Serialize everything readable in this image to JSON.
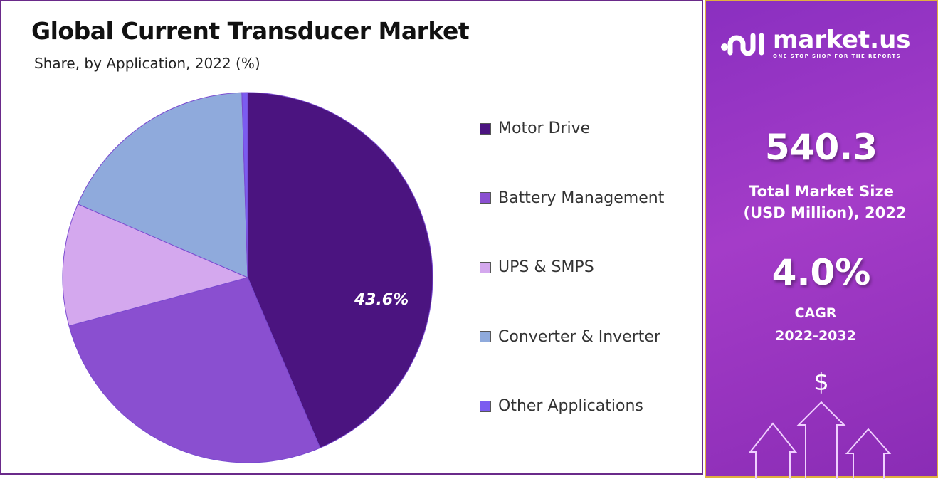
{
  "chart_data": {
    "type": "pie",
    "title": "Global Current Transducer Market",
    "subtitle": "Share, by Application, 2022 (%)",
    "legend_position": "right",
    "slices": [
      {
        "label": "Motor Drive",
        "value": 43.6,
        "color": "#4b1480",
        "data_label": "43.6%"
      },
      {
        "label": "Battery Management",
        "value": 27.2,
        "color": "#8a4fd0"
      },
      {
        "label": "UPS & SMPS",
        "value": 10.7,
        "color": "#d4a8ee"
      },
      {
        "label": "Converter & Inverter",
        "value": 18.0,
        "color": "#8faadc"
      },
      {
        "label": "Other Applications",
        "value": 0.5,
        "color": "#7b5cf0"
      }
    ]
  },
  "sidebar": {
    "brand": "market.us",
    "tagline": "ONE STOP SHOP FOR THE REPORTS",
    "market_size": "540.3",
    "market_size_label_1": "Total Market Size",
    "market_size_label_2": "(USD Million), 2022",
    "cagr": "4.0%",
    "cagr_label_1": "CAGR",
    "cagr_label_2": "2022-2032",
    "dollar": "$"
  }
}
